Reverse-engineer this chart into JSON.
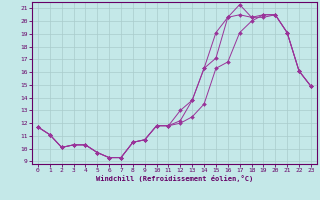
{
  "xlabel": "Windchill (Refroidissement éolien,°C)",
  "bg_color": "#c4e8e8",
  "grid_color": "#aacccc",
  "line_color": "#993399",
  "xmin": -0.5,
  "xmax": 23.5,
  "ymin": 9,
  "ymax": 21.5,
  "yticks": [
    9,
    10,
    11,
    12,
    13,
    14,
    15,
    16,
    17,
    18,
    19,
    20,
    21
  ],
  "xticks": [
    0,
    1,
    2,
    3,
    4,
    5,
    6,
    7,
    8,
    9,
    10,
    11,
    12,
    13,
    14,
    15,
    16,
    17,
    18,
    19,
    20,
    21,
    22,
    23
  ],
  "line1_x": [
    0,
    1,
    2,
    3,
    4,
    5,
    6,
    7,
    8,
    9,
    10,
    11,
    12,
    13,
    14,
    15,
    16,
    17,
    18,
    19,
    20,
    21,
    22,
    23
  ],
  "line1_y": [
    11.7,
    11.1,
    10.1,
    10.3,
    10.3,
    9.7,
    9.3,
    9.3,
    10.5,
    10.7,
    11.8,
    11.8,
    13.0,
    13.8,
    16.3,
    19.1,
    20.3,
    21.3,
    20.3,
    20.3,
    20.5,
    19.1,
    16.1,
    14.9
  ],
  "line2_x": [
    0,
    1,
    2,
    3,
    4,
    5,
    6,
    7,
    8,
    9,
    10,
    11,
    12,
    13,
    14,
    15,
    16,
    17,
    18,
    19,
    20,
    21,
    22,
    23
  ],
  "line2_y": [
    11.7,
    11.1,
    10.1,
    10.3,
    10.3,
    9.7,
    9.3,
    9.3,
    10.5,
    10.7,
    11.8,
    11.8,
    12.2,
    13.8,
    16.3,
    17.1,
    20.3,
    20.5,
    20.3,
    20.5,
    20.5,
    19.1,
    16.1,
    14.9
  ],
  "line3_x": [
    0,
    1,
    2,
    3,
    4,
    5,
    6,
    7,
    8,
    9,
    10,
    11,
    12,
    13,
    14,
    15,
    16,
    17,
    18,
    19,
    20,
    21,
    22,
    23
  ],
  "line3_y": [
    11.7,
    11.1,
    10.1,
    10.3,
    10.3,
    9.7,
    9.3,
    9.3,
    10.5,
    10.7,
    11.8,
    11.8,
    12.0,
    12.5,
    13.5,
    16.3,
    16.8,
    19.1,
    20.0,
    20.5,
    20.5,
    19.1,
    16.1,
    14.9
  ]
}
